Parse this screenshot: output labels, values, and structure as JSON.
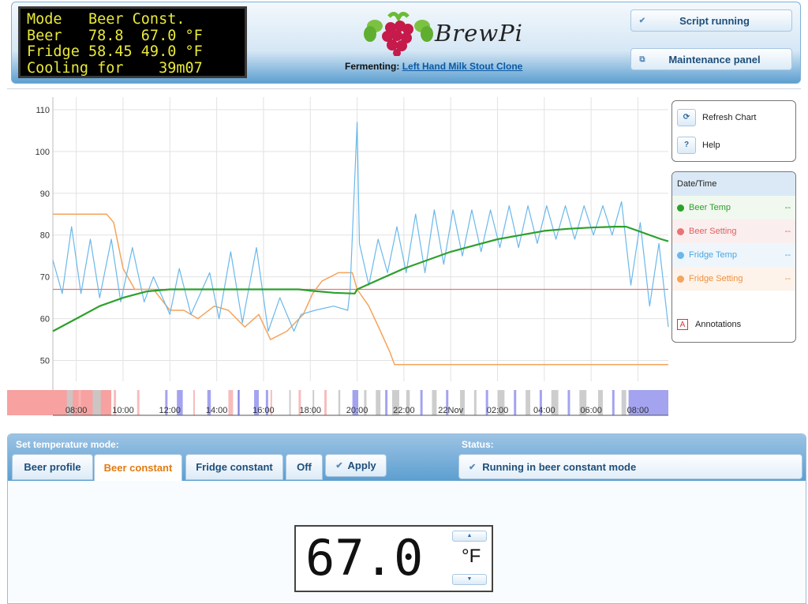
{
  "lcd": {
    "lines": [
      "Mode   Beer Const.",
      "Beer   78.8  67.0 °F",
      "Fridge 58.45 49.0 °F",
      "Cooling for    39m07"
    ]
  },
  "header": {
    "logo_text": "BrewPi",
    "fermenting_label": "Fermenting:",
    "fermenting_name": "Left Hand Milk Stout Clone",
    "script_button": "Script running",
    "maintenance_button": "Maintenance panel"
  },
  "chart_panel": {
    "refresh_label": "Refresh Chart",
    "help_label": "Help",
    "help_icon_glyph": "?",
    "refresh_icon_glyph": "⟳",
    "legend_header": "Date/Time",
    "legend": [
      {
        "name": "Beer Temp",
        "color": "#2ca02c",
        "value": "--"
      },
      {
        "name": "Beer Setting",
        "color": "#e87474",
        "value": "--"
      },
      {
        "name": "Fridge Temp",
        "color": "#6ab8ea",
        "value": "--"
      },
      {
        "name": "Fridge Setting",
        "color": "#f4a45c",
        "value": "--"
      }
    ],
    "annotations_label": "Annotations",
    "annotations_icon_glyph": "A"
  },
  "chart_data": {
    "type": "line",
    "ylim": [
      45,
      113
    ],
    "yticks": [
      50,
      60,
      70,
      80,
      90,
      100,
      110
    ],
    "xticks": [
      "08:00",
      "10:00",
      "12:00",
      "14:00",
      "16:00",
      "18:00",
      "20:00",
      "22:00",
      "22Nov",
      "02:00",
      "04:00",
      "06:00",
      "08:00"
    ],
    "x_hours_start": 7.0,
    "x_hours_end": 33.3,
    "series": [
      {
        "name": "Beer Setting",
        "color": "#e87474",
        "points": [
          [
            7.0,
            67.0
          ],
          [
            33.3,
            67.0
          ]
        ]
      },
      {
        "name": "Fridge Setting",
        "color": "#f4a45c",
        "points": [
          [
            7.0,
            85
          ],
          [
            9.3,
            85
          ],
          [
            9.6,
            83
          ],
          [
            10.0,
            72
          ],
          [
            10.5,
            67
          ],
          [
            11.3,
            67
          ],
          [
            12.0,
            62
          ],
          [
            12.6,
            62
          ],
          [
            13.2,
            60
          ],
          [
            13.9,
            63
          ],
          [
            14.5,
            62
          ],
          [
            15.2,
            58
          ],
          [
            15.8,
            61
          ],
          [
            16.3,
            55
          ],
          [
            17.0,
            57
          ],
          [
            17.7,
            61
          ],
          [
            18.1,
            66
          ],
          [
            18.5,
            69
          ],
          [
            19.2,
            71
          ],
          [
            19.8,
            71
          ],
          [
            20.0,
            67
          ],
          [
            20.5,
            63
          ],
          [
            21.0,
            57
          ],
          [
            21.4,
            52
          ],
          [
            21.6,
            49
          ],
          [
            33.3,
            49
          ]
        ]
      },
      {
        "name": "Fridge Temp",
        "color": "#6ab8ea",
        "points": [
          [
            7.0,
            74
          ],
          [
            7.4,
            66
          ],
          [
            7.8,
            82
          ],
          [
            8.2,
            66
          ],
          [
            8.6,
            79
          ],
          [
            9.0,
            65
          ],
          [
            9.5,
            79
          ],
          [
            9.9,
            64
          ],
          [
            10.4,
            77
          ],
          [
            10.9,
            64
          ],
          [
            11.3,
            70
          ],
          [
            12.0,
            61
          ],
          [
            12.4,
            72
          ],
          [
            12.9,
            61
          ],
          [
            13.7,
            71
          ],
          [
            14.1,
            60
          ],
          [
            14.6,
            76
          ],
          [
            15.1,
            59
          ],
          [
            15.7,
            77
          ],
          [
            16.2,
            57
          ],
          [
            16.7,
            65
          ],
          [
            17.3,
            57
          ],
          [
            17.6,
            61
          ],
          [
            18.2,
            62
          ],
          [
            19.0,
            63
          ],
          [
            19.6,
            62
          ],
          [
            19.7,
            67
          ],
          [
            20.0,
            107
          ],
          [
            20.1,
            78
          ],
          [
            20.5,
            68
          ],
          [
            20.9,
            79
          ],
          [
            21.3,
            71
          ],
          [
            21.7,
            82
          ],
          [
            22.1,
            71
          ],
          [
            22.5,
            85
          ],
          [
            22.9,
            71
          ],
          [
            23.3,
            86
          ],
          [
            23.7,
            73
          ],
          [
            24.1,
            86
          ],
          [
            24.5,
            75
          ],
          [
            24.9,
            86
          ],
          [
            25.3,
            76
          ],
          [
            25.7,
            86
          ],
          [
            26.1,
            77
          ],
          [
            26.5,
            87
          ],
          [
            26.9,
            77
          ],
          [
            27.3,
            87
          ],
          [
            27.7,
            78
          ],
          [
            28.1,
            87
          ],
          [
            28.5,
            79
          ],
          [
            28.9,
            87
          ],
          [
            29.3,
            79
          ],
          [
            29.7,
            87
          ],
          [
            30.1,
            80
          ],
          [
            30.5,
            87
          ],
          [
            30.9,
            80
          ],
          [
            31.3,
            88
          ],
          [
            31.7,
            68
          ],
          [
            32.1,
            83
          ],
          [
            32.5,
            63
          ],
          [
            32.9,
            78
          ],
          [
            33.3,
            58
          ]
        ]
      },
      {
        "name": "Beer Temp",
        "color": "#2ca02c",
        "points": [
          [
            7.0,
            57
          ],
          [
            8.0,
            60
          ],
          [
            9.0,
            63
          ],
          [
            10.0,
            65
          ],
          [
            11.0,
            66.5
          ],
          [
            12.0,
            67
          ],
          [
            13.0,
            67
          ],
          [
            14.0,
            67
          ],
          [
            15.0,
            67
          ],
          [
            16.0,
            67
          ],
          [
            17.0,
            67
          ],
          [
            17.5,
            67
          ],
          [
            18.0,
            66.7
          ],
          [
            19.0,
            66.2
          ],
          [
            19.9,
            66
          ],
          [
            20.0,
            67
          ],
          [
            21.0,
            69.5
          ],
          [
            22.0,
            72
          ],
          [
            23.0,
            74
          ],
          [
            24.0,
            76
          ],
          [
            25.0,
            77.5
          ],
          [
            26.0,
            79
          ],
          [
            27.0,
            80
          ],
          [
            28.0,
            81
          ],
          [
            29.0,
            81.5
          ],
          [
            30.0,
            81.8
          ],
          [
            31.0,
            82
          ],
          [
            31.5,
            82
          ],
          [
            32.0,
            81
          ],
          [
            33.0,
            79
          ],
          [
            33.3,
            78.5
          ]
        ]
      }
    ]
  },
  "control": {
    "mode_title": "Set temperature mode:",
    "status_title": "Status:",
    "tabs": [
      "Beer profile",
      "Beer constant",
      "Fridge constant",
      "Off"
    ],
    "active_tab": "Beer constant",
    "apply_label": "Apply",
    "status_text": "Running in beer constant mode",
    "temp_value": "67.0",
    "temp_unit": "°F"
  }
}
